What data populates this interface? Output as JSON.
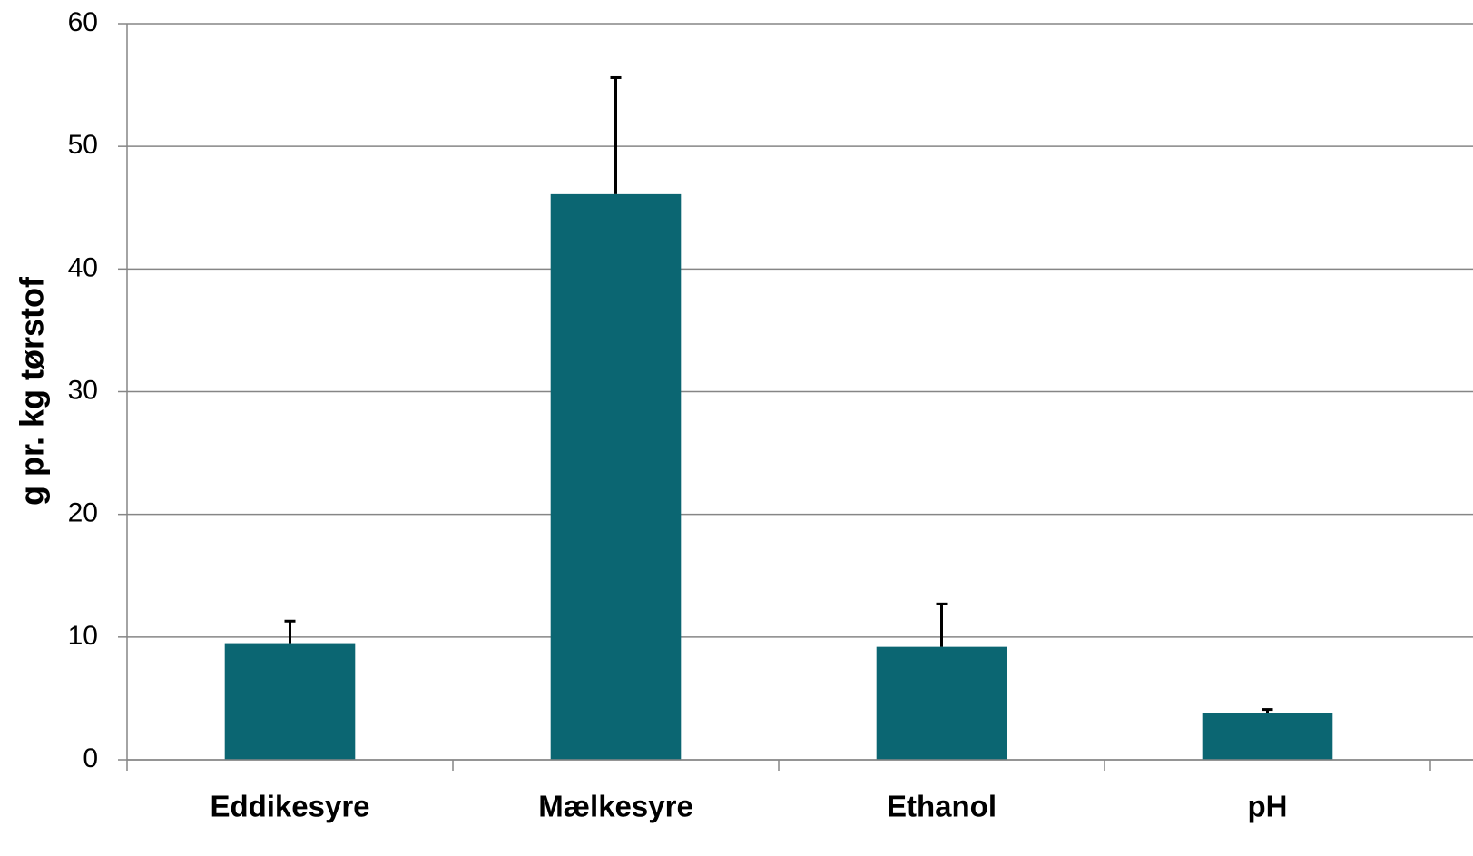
{
  "chart_data": {
    "type": "bar",
    "y_label": "g pr. kg tørstof",
    "categories": [
      "Eddikesyre",
      "Mælkesyre",
      "Ethanol",
      "pH"
    ],
    "values": [
      9.5,
      46.1,
      9.2,
      3.8
    ],
    "errors": [
      1.8,
      9.5,
      3.5,
      0.3
    ],
    "color": "#0b6672",
    "ylim": [
      0,
      60
    ],
    "yticks": [
      0,
      10,
      20,
      30,
      40,
      50,
      60
    ],
    "grid": true
  }
}
